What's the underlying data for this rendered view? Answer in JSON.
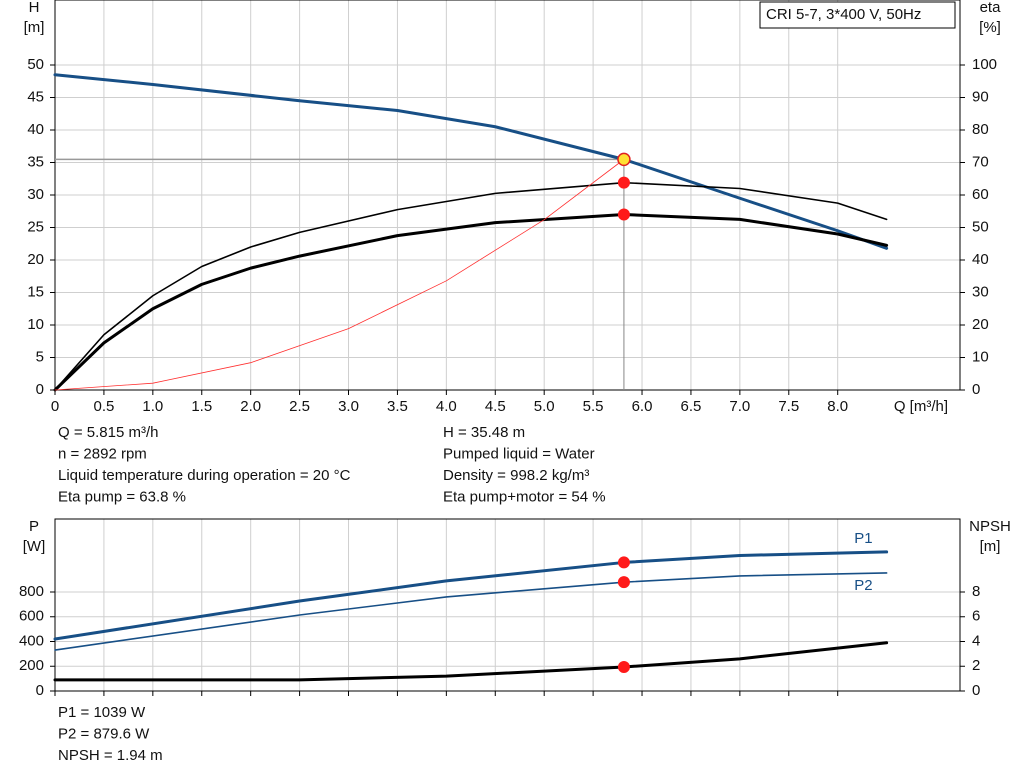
{
  "chart_data": [
    {
      "type": "line",
      "title": "CRI 5-7, 3*400 V, 50Hz",
      "y_label": [
        "H",
        "[m]"
      ],
      "y2_label": [
        "eta",
        "[%]"
      ],
      "x_label": "Q [m³/h]",
      "xlim": [
        0,
        9.25
      ],
      "ylim": [
        0,
        60
      ],
      "y2lim": [
        0,
        120
      ],
      "xticks": [
        0,
        0.5,
        {
          "value": 1,
          "label": "1.0"
        },
        1.5,
        {
          "value": 2,
          "label": "2.0"
        },
        2.5,
        {
          "value": 3,
          "label": "3.0"
        },
        3.5,
        {
          "value": 4,
          "label": "4.0"
        },
        4.5,
        {
          "value": 5,
          "label": "5.0"
        },
        5.5,
        {
          "value": 6,
          "label": "6.0"
        },
        6.5,
        {
          "value": 7,
          "label": "7.0"
        },
        7.5,
        {
          "value": 8,
          "label": "8.0"
        }
      ],
      "yticks": [
        0,
        5,
        10,
        15,
        20,
        25,
        30,
        35,
        40,
        45,
        50
      ],
      "y2ticks": [
        0,
        10,
        20,
        30,
        40,
        50,
        60,
        70,
        80,
        90,
        100
      ],
      "grid": true,
      "duty_point": {
        "x": 5.815,
        "y": 35.48
      },
      "series": [
        {
          "color": "#174f86",
          "line_width": 3,
          "marker_color": "#ffe033",
          "x": [
            0,
            1,
            2.5,
            3.5,
            4.5,
            5.815,
            7,
            8,
            8.5
          ],
          "values": [
            48.5,
            47,
            44.5,
            43,
            40.5,
            35.48,
            29.5,
            24.5,
            21.8
          ]
        },
        {
          "color": "#000000",
          "line_width": 1.6,
          "marker_color": "#ff1a1a",
          "axis": "y2",
          "x": [
            0,
            0.5,
            1,
            1.5,
            2,
            2.5,
            3.5,
            4.5,
            5.815,
            7,
            8,
            8.5
          ],
          "values": [
            0,
            17,
            29,
            38,
            44,
            48.5,
            55.5,
            60.5,
            63.8,
            62,
            57.5,
            52.5
          ]
        },
        {
          "color": "#000000",
          "line_width": 3,
          "marker_color": "#ff1a1a",
          "axis": "y2",
          "x": [
            0,
            0.5,
            1,
            1.5,
            2,
            2.5,
            3.5,
            4.5,
            5.815,
            7,
            8,
            8.5
          ],
          "values": [
            0,
            14.5,
            25,
            32.5,
            37.5,
            41.2,
            47.5,
            51.5,
            54,
            52.5,
            48,
            44.5
          ]
        },
        {
          "color": "#ff3030",
          "line_width": 0.8,
          "x": [
            0,
            1,
            2,
            3,
            4,
            5,
            5.815
          ],
          "values": [
            0,
            1.05,
            4.2,
            9.44,
            16.8,
            26.2,
            35.48
          ]
        }
      ],
      "info": [
        [
          "Q = 5.815 m³/h",
          "n = 2892 rpm",
          "Liquid temperature during operation = 20 °C",
          "Eta pump = 63.8 %"
        ],
        [
          "H = 35.48 m",
          "Pumped liquid = Water",
          "Density = 998.2 kg/m³",
          "Eta pump+motor = 54 %"
        ]
      ]
    },
    {
      "type": "line",
      "y_label": [
        "P",
        "[W]"
      ],
      "y2_label": [
        "NPSH",
        "[m]"
      ],
      "xlim": [
        0,
        9.25
      ],
      "ylim": [
        0,
        1390
      ],
      "y2lim": [
        0,
        13.9
      ],
      "xticks": [
        0,
        0.5,
        1,
        1.5,
        2,
        2.5,
        3,
        3.5,
        4,
        4.5,
        5,
        5.5,
        6,
        6.5,
        7,
        7.5,
        8
      ],
      "yticks": [
        0,
        200,
        400,
        600,
        800
      ],
      "y2ticks": [
        0,
        2,
        4,
        6,
        8
      ],
      "grid": true,
      "duty_point": {
        "x": 5.815
      },
      "series": [
        {
          "name": "P1",
          "color": "#174f86",
          "line_width": 3,
          "marker_color": "#ff1a1a",
          "x": [
            0,
            2.5,
            4,
            5.815,
            7,
            8.5
          ],
          "values": [
            420,
            727,
            890,
            1039,
            1095,
            1124
          ]
        },
        {
          "name": "P2",
          "color": "#174f86",
          "line_width": 1.6,
          "marker_color": "#ff1a1a",
          "x": [
            0,
            2.5,
            4,
            5.815,
            7,
            8.5
          ],
          "values": [
            331,
            614,
            760,
            879.6,
            930,
            954
          ]
        },
        {
          "color": "#000000",
          "line_width": 3,
          "marker_color": "#ff1a1a",
          "axis": "y2",
          "x": [
            0,
            2.5,
            4,
            5.815,
            7,
            8.5
          ],
          "values": [
            0.9,
            0.9,
            1.2,
            1.94,
            2.6,
            3.9
          ]
        }
      ],
      "info": [
        [
          "P1 = 1039 W",
          "P2 = 879.6 W",
          "NPSH = 1.94 m"
        ]
      ]
    }
  ]
}
